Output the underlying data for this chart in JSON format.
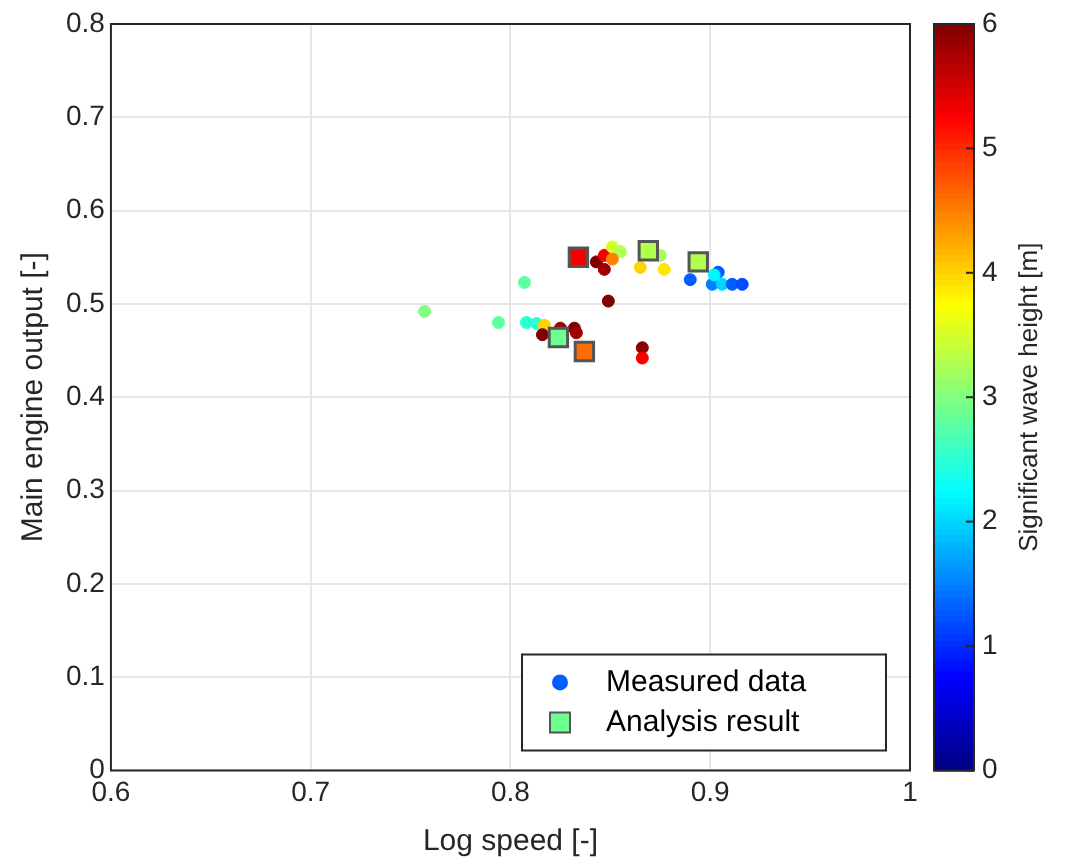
{
  "chart_data": {
    "type": "scatter",
    "xlabel": "Log speed [-]",
    "ylabel": "Main engine output [-]",
    "clabel": "Significant wave height [m]",
    "xlim": [
      0.6,
      1
    ],
    "xticks": [
      0.6,
      0.7,
      0.8,
      0.9,
      1
    ],
    "ylim": [
      0,
      0.8
    ],
    "yticks": [
      0,
      0.1,
      0.2,
      0.3,
      0.4,
      0.5,
      0.6,
      0.7,
      0.8
    ],
    "clim": [
      0,
      6
    ],
    "cticks": [
      0,
      1,
      2,
      3,
      4,
      5,
      6
    ],
    "grid": true,
    "legend": "bottom right",
    "series": [
      {
        "name": "Measured data",
        "marker": "circle",
        "color": "#005eff",
        "x": [
          0.757,
          0.794,
          0.807,
          0.808,
          0.813,
          0.817,
          0.816,
          0.825,
          0.832,
          0.833,
          0.849,
          0.866,
          0.866,
          0.843,
          0.847,
          0.847,
          0.851,
          0.855,
          0.851,
          0.865,
          0.877,
          0.875,
          0.89,
          0.904,
          0.901,
          0.906,
          0.911,
          0.916,
          0.902
        ],
        "values": [
          0.492,
          0.48,
          0.523,
          0.48,
          0.479,
          0.477,
          0.467,
          0.474,
          0.474,
          0.469,
          0.503,
          0.453,
          0.442,
          0.545,
          0.552,
          0.537,
          0.561,
          0.556,
          0.548,
          0.539,
          0.537,
          0.552,
          0.526,
          0.534,
          0.521,
          0.521,
          0.521,
          0.521,
          0.531
        ],
        "cvalues": [
          3,
          2.8,
          2.8,
          2.5,
          2.5,
          4,
          6,
          5.8,
          6,
          5.8,
          6,
          5.9,
          5.3,
          6,
          5.3,
          5.8,
          3.5,
          3.3,
          4.5,
          4,
          3.9,
          3.2,
          1.3,
          1.3,
          1.5,
          2,
          1.3,
          1.2,
          2.2
        ],
        "colors": [
          "#80ff80",
          "#5effa1",
          "#5effa1",
          "#2bffd4",
          "#2bffd4",
          "#ffd400",
          "#800000",
          "#a10000",
          "#800000",
          "#a10000",
          "#800000",
          "#910000",
          "#f70000",
          "#800000",
          "#f70000",
          "#a10000",
          "#d4ff2b",
          "#b3ff4d",
          "#ff8000",
          "#ffd400",
          "#ffe600",
          "#a1ff5e",
          "#005eff",
          "#005eff",
          "#0080ff",
          "#00d4ff",
          "#005eff",
          "#004dff",
          "#00f7ff"
        ]
      },
      {
        "name": "Analysis result",
        "marker": "square",
        "color": "#6eff91",
        "x": [
          0.834,
          0.869,
          0.894,
          0.824,
          0.837
        ],
        "values": [
          0.55,
          0.557,
          0.545,
          0.464,
          0.449
        ],
        "cvalues": [
          5.3,
          3.3,
          3.3,
          2.9,
          4.6
        ],
        "colors": [
          "#f70000",
          "#b3ff4d",
          "#b3ff4d",
          "#6eff91",
          "#ff6e00"
        ]
      }
    ]
  }
}
